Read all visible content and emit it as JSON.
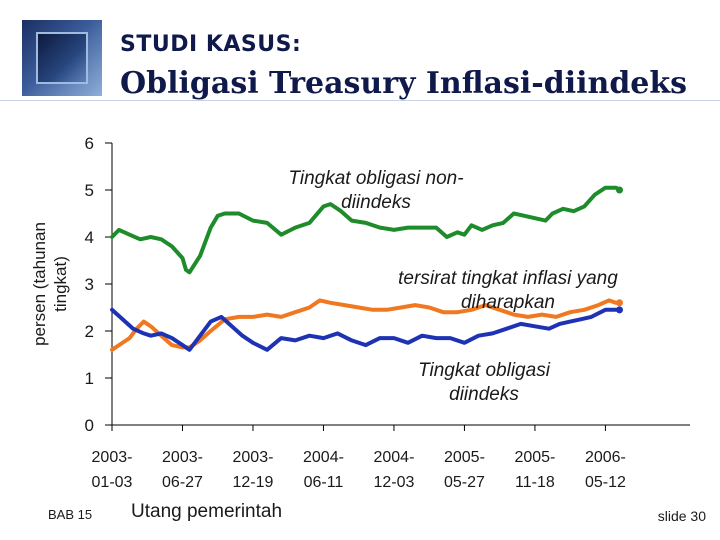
{
  "header": {
    "kicker": "STUDI KASUS:",
    "title": "Obligasi Treasury Inflasi-diindeks"
  },
  "footer": {
    "chapter": "BAB 15",
    "topic": "Utang pemerintah",
    "slide": "slide 30"
  },
  "colors": {
    "nominal": "#1e8c2a",
    "expected": "#f07820",
    "indexed": "#1e33b4",
    "axis": "#000000"
  },
  "chart_data": {
    "type": "line",
    "title": "",
    "ylabel_lines": [
      "persen (tahunan",
      "tingkat)"
    ],
    "xlabel": "",
    "ylim": [
      0,
      6
    ],
    "yticks": [
      0,
      1,
      2,
      3,
      4,
      5,
      6
    ],
    "xlim": [
      0,
      8.2
    ],
    "categories": [
      {
        "top": "2003-",
        "bottom": "01-03",
        "pos": 0
      },
      {
        "top": "2003-",
        "bottom": "06-27",
        "pos": 1
      },
      {
        "top": "2003-",
        "bottom": "12-19",
        "pos": 2
      },
      {
        "top": "2004-",
        "bottom": "06-11",
        "pos": 3
      },
      {
        "top": "2004-",
        "bottom": "12-03",
        "pos": 4
      },
      {
        "top": "2005-",
        "bottom": "05-27",
        "pos": 5
      },
      {
        "top": "2005-",
        "bottom": "11-18",
        "pos": 6
      },
      {
        "top": "2006-",
        "bottom": "05-12",
        "pos": 7
      }
    ],
    "series": [
      {
        "name": "Tingkat obligasi non-diindeks",
        "label_lines": [
          "Tingkat obligasi non-",
          "diindeks"
        ],
        "color_key": "nominal",
        "points": [
          [
            0,
            4.0
          ],
          [
            0.1,
            4.15
          ],
          [
            0.25,
            4.05
          ],
          [
            0.4,
            3.95
          ],
          [
            0.55,
            4.0
          ],
          [
            0.7,
            3.95
          ],
          [
            0.85,
            3.8
          ],
          [
            1.0,
            3.55
          ],
          [
            1.05,
            3.3
          ],
          [
            1.1,
            3.25
          ],
          [
            1.25,
            3.6
          ],
          [
            1.4,
            4.2
          ],
          [
            1.5,
            4.45
          ],
          [
            1.6,
            4.5
          ],
          [
            1.8,
            4.5
          ],
          [
            2.0,
            4.35
          ],
          [
            2.2,
            4.3
          ],
          [
            2.4,
            4.05
          ],
          [
            2.6,
            4.2
          ],
          [
            2.8,
            4.3
          ],
          [
            3.0,
            4.65
          ],
          [
            3.1,
            4.7
          ],
          [
            3.25,
            4.55
          ],
          [
            3.4,
            4.35
          ],
          [
            3.6,
            4.3
          ],
          [
            3.8,
            4.2
          ],
          [
            4.0,
            4.15
          ],
          [
            4.2,
            4.2
          ],
          [
            4.4,
            4.2
          ],
          [
            4.6,
            4.2
          ],
          [
            4.75,
            4.0
          ],
          [
            4.9,
            4.1
          ],
          [
            5.0,
            4.05
          ],
          [
            5.1,
            4.25
          ],
          [
            5.25,
            4.15
          ],
          [
            5.4,
            4.25
          ],
          [
            5.55,
            4.3
          ],
          [
            5.7,
            4.5
          ],
          [
            5.85,
            4.45
          ],
          [
            6.0,
            4.4
          ],
          [
            6.15,
            4.35
          ],
          [
            6.25,
            4.5
          ],
          [
            6.4,
            4.6
          ],
          [
            6.55,
            4.55
          ],
          [
            6.7,
            4.65
          ],
          [
            6.85,
            4.9
          ],
          [
            7.0,
            5.05
          ],
          [
            7.15,
            5.05
          ],
          [
            7.2,
            5.0
          ]
        ]
      },
      {
        "name": "tersirat tingkat inflasi yang diharapkan",
        "label_lines": [
          "tersirat tingkat inflasi yang",
          "diharapkan"
        ],
        "color_key": "expected",
        "points": [
          [
            0,
            1.6
          ],
          [
            0.1,
            1.7
          ],
          [
            0.25,
            1.85
          ],
          [
            0.35,
            2.05
          ],
          [
            0.45,
            2.2
          ],
          [
            0.55,
            2.1
          ],
          [
            0.7,
            1.9
          ],
          [
            0.85,
            1.7
          ],
          [
            1.0,
            1.65
          ],
          [
            1.1,
            1.65
          ],
          [
            1.25,
            1.8
          ],
          [
            1.4,
            2.0
          ],
          [
            1.6,
            2.25
          ],
          [
            1.8,
            2.3
          ],
          [
            2.0,
            2.3
          ],
          [
            2.2,
            2.35
          ],
          [
            2.4,
            2.3
          ],
          [
            2.6,
            2.4
          ],
          [
            2.8,
            2.5
          ],
          [
            2.95,
            2.65
          ],
          [
            3.1,
            2.6
          ],
          [
            3.3,
            2.55
          ],
          [
            3.5,
            2.5
          ],
          [
            3.7,
            2.45
          ],
          [
            3.9,
            2.45
          ],
          [
            4.1,
            2.5
          ],
          [
            4.3,
            2.55
          ],
          [
            4.5,
            2.5
          ],
          [
            4.7,
            2.4
          ],
          [
            4.9,
            2.4
          ],
          [
            5.1,
            2.45
          ],
          [
            5.3,
            2.55
          ],
          [
            5.5,
            2.45
          ],
          [
            5.7,
            2.35
          ],
          [
            5.9,
            2.3
          ],
          [
            6.1,
            2.35
          ],
          [
            6.3,
            2.3
          ],
          [
            6.5,
            2.4
          ],
          [
            6.7,
            2.45
          ],
          [
            6.9,
            2.55
          ],
          [
            7.05,
            2.65
          ],
          [
            7.15,
            2.6
          ],
          [
            7.2,
            2.6
          ]
        ]
      },
      {
        "name": "Tingkat obligasi diindeks",
        "label_lines": [
          "Tingkat obligasi",
          "diindeks"
        ],
        "color_key": "indexed",
        "points": [
          [
            0,
            2.45
          ],
          [
            0.15,
            2.25
          ],
          [
            0.3,
            2.05
          ],
          [
            0.45,
            1.95
          ],
          [
            0.55,
            1.9
          ],
          [
            0.7,
            1.95
          ],
          [
            0.85,
            1.85
          ],
          [
            1.0,
            1.7
          ],
          [
            1.1,
            1.6
          ],
          [
            1.25,
            1.9
          ],
          [
            1.4,
            2.2
          ],
          [
            1.55,
            2.3
          ],
          [
            1.7,
            2.1
          ],
          [
            1.85,
            1.9
          ],
          [
            2.0,
            1.75
          ],
          [
            2.2,
            1.6
          ],
          [
            2.4,
            1.85
          ],
          [
            2.6,
            1.8
          ],
          [
            2.8,
            1.9
          ],
          [
            3.0,
            1.85
          ],
          [
            3.2,
            1.95
          ],
          [
            3.4,
            1.8
          ],
          [
            3.6,
            1.7
          ],
          [
            3.8,
            1.85
          ],
          [
            4.0,
            1.85
          ],
          [
            4.2,
            1.75
          ],
          [
            4.4,
            1.9
          ],
          [
            4.6,
            1.85
          ],
          [
            4.8,
            1.85
          ],
          [
            5.0,
            1.75
          ],
          [
            5.2,
            1.9
          ],
          [
            5.4,
            1.95
          ],
          [
            5.6,
            2.05
          ],
          [
            5.8,
            2.15
          ],
          [
            6.0,
            2.1
          ],
          [
            6.2,
            2.05
          ],
          [
            6.35,
            2.15
          ],
          [
            6.5,
            2.2
          ],
          [
            6.65,
            2.25
          ],
          [
            6.8,
            2.3
          ],
          [
            7.0,
            2.45
          ],
          [
            7.2,
            2.45
          ]
        ]
      }
    ]
  }
}
